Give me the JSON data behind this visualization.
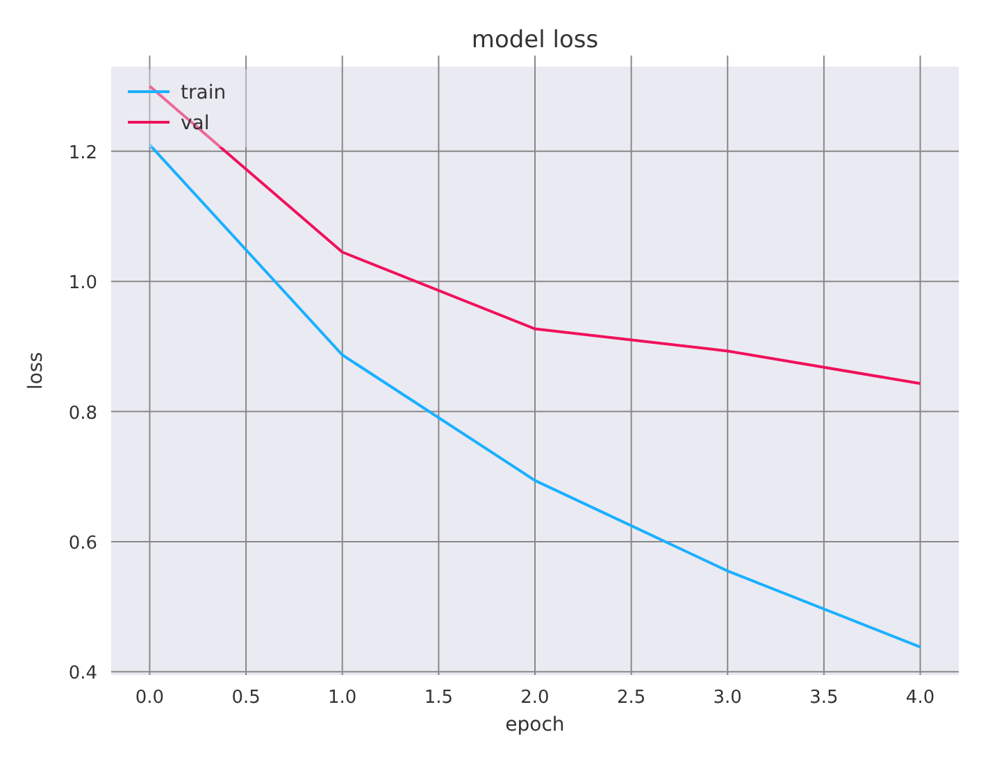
{
  "chart_data": {
    "type": "line",
    "title": "model loss",
    "xlabel": "epoch",
    "ylabel": "loss",
    "x": [
      0,
      1,
      2,
      3,
      4
    ],
    "series": [
      {
        "name": "train",
        "color": "#1ab0ff",
        "values": [
          1.21,
          0.887,
          0.694,
          0.555,
          0.438
        ]
      },
      {
        "name": "val",
        "color": "#f0115a",
        "values": [
          1.3,
          1.045,
          0.927,
          0.893,
          0.843
        ]
      }
    ],
    "xlim": [
      -0.2,
      4.2
    ],
    "ylim": [
      0.395,
      1.33
    ],
    "xticks": [
      {
        "value": 0,
        "label": "0.0"
      },
      {
        "value": 0.5,
        "label": "0.5"
      },
      {
        "value": 1,
        "label": "1.0"
      },
      {
        "value": 1.5,
        "label": "1.5"
      },
      {
        "value": 2,
        "label": "2.0"
      },
      {
        "value": 2.5,
        "label": "2.5"
      },
      {
        "value": 3,
        "label": "3.0"
      },
      {
        "value": 3.5,
        "label": "3.5"
      },
      {
        "value": 4,
        "label": "4.0"
      }
    ],
    "yticks": [
      {
        "value": 0.4,
        "label": "0.4"
      },
      {
        "value": 0.6,
        "label": "0.6"
      },
      {
        "value": 0.8,
        "label": "0.8"
      },
      {
        "value": 1,
        "label": "1.0"
      },
      {
        "value": 1.2,
        "label": "1.2"
      }
    ],
    "grid": true,
    "legend": "top left",
    "marker": "none",
    "line_style": "solid"
  }
}
